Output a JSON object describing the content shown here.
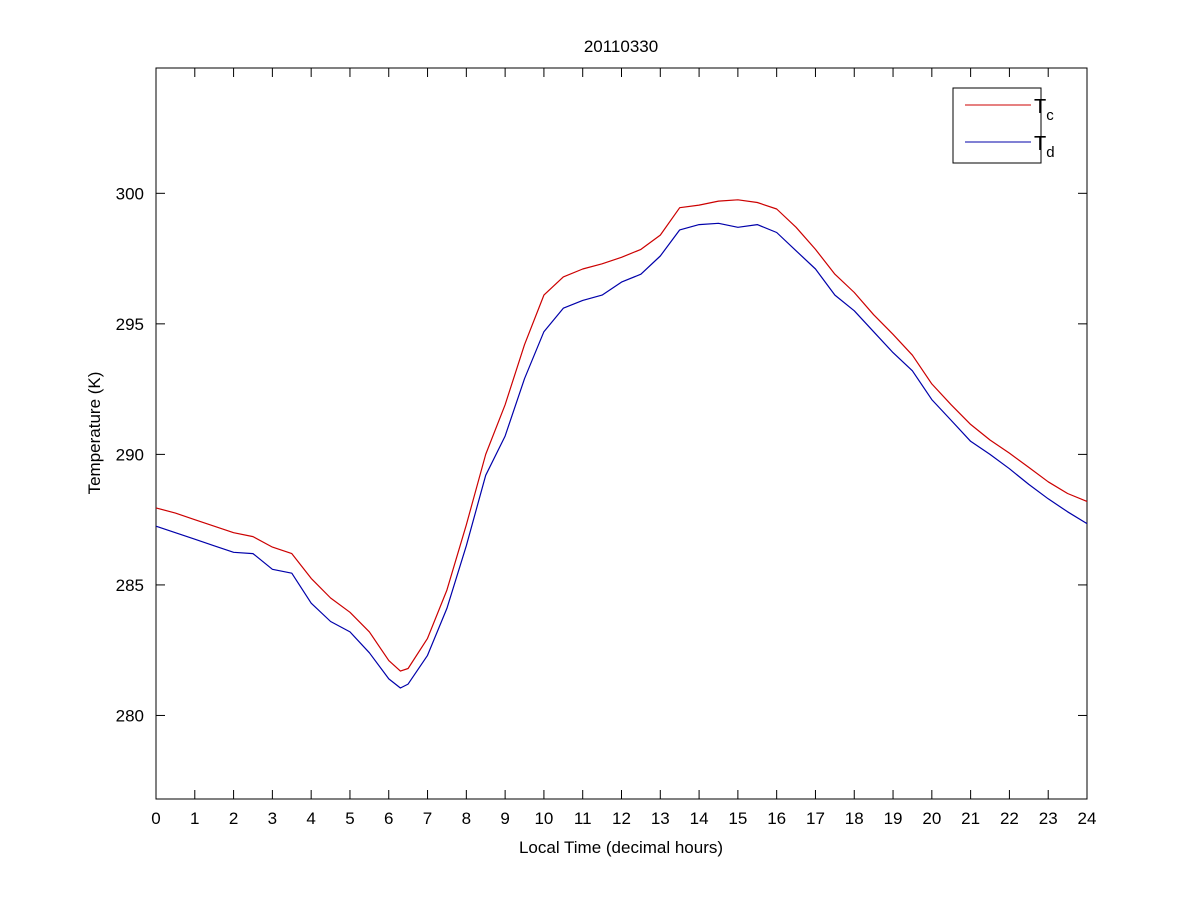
{
  "chart_data": {
    "type": "line",
    "title": "20110330",
    "xlabel": "Local Time (decimal hours)",
    "ylabel": "Temperature (K)",
    "xlim": [
      0,
      24
    ],
    "ylim": [
      276.8,
      304.8
    ],
    "xticks": [
      0,
      1,
      2,
      3,
      4,
      5,
      6,
      7,
      8,
      9,
      10,
      11,
      12,
      13,
      14,
      15,
      16,
      17,
      18,
      19,
      20,
      21,
      22,
      23,
      24
    ],
    "yticks": [
      280,
      285,
      290,
      295,
      300
    ],
    "grid": false,
    "legend_position": "top-right",
    "x": [
      0,
      0.5,
      1,
      1.5,
      2,
      2.5,
      3,
      3.5,
      4,
      4.5,
      5,
      5.5,
      6,
      6.3,
      6.5,
      7,
      7.5,
      8,
      8.5,
      9,
      9.5,
      10,
      10.5,
      11,
      11.5,
      12,
      12.5,
      13,
      13.5,
      14,
      14.5,
      15,
      15.5,
      16,
      16.5,
      17,
      17.5,
      18,
      18.5,
      19,
      19.5,
      20,
      20.5,
      21,
      21.5,
      22,
      22.5,
      23,
      23.5,
      24
    ],
    "series": [
      {
        "name": "T",
        "subscript": "c",
        "color": "#cc0000",
        "values": [
          287.95,
          287.75,
          287.5,
          287.25,
          287.0,
          286.85,
          286.45,
          286.2,
          285.25,
          284.5,
          283.95,
          283.2,
          282.1,
          281.7,
          281.8,
          282.95,
          284.8,
          287.3,
          290.0,
          291.9,
          294.2,
          296.1,
          296.8,
          297.1,
          297.3,
          297.55,
          297.85,
          298.4,
          299.45,
          299.55,
          299.7,
          299.75,
          299.65,
          299.4,
          298.7,
          297.85,
          296.9,
          296.2,
          295.35,
          294.6,
          293.8,
          292.7,
          291.9,
          291.15,
          290.55,
          290.05,
          289.5,
          288.95,
          288.5,
          288.2
        ]
      },
      {
        "name": "T",
        "subscript": "d",
        "color": "#0000aa",
        "values": [
          287.25,
          287.0,
          286.75,
          286.5,
          286.25,
          286.2,
          285.6,
          285.45,
          284.3,
          283.6,
          283.2,
          282.4,
          281.4,
          281.05,
          281.2,
          282.3,
          284.1,
          286.5,
          289.2,
          290.7,
          292.9,
          294.7,
          295.6,
          295.9,
          296.1,
          296.6,
          296.9,
          297.6,
          298.6,
          298.8,
          298.85,
          298.7,
          298.8,
          298.5,
          297.8,
          297.1,
          296.1,
          295.5,
          294.7,
          293.9,
          293.2,
          292.1,
          291.3,
          290.5,
          290.0,
          289.45,
          288.85,
          288.3,
          287.8,
          287.35
        ]
      }
    ]
  }
}
